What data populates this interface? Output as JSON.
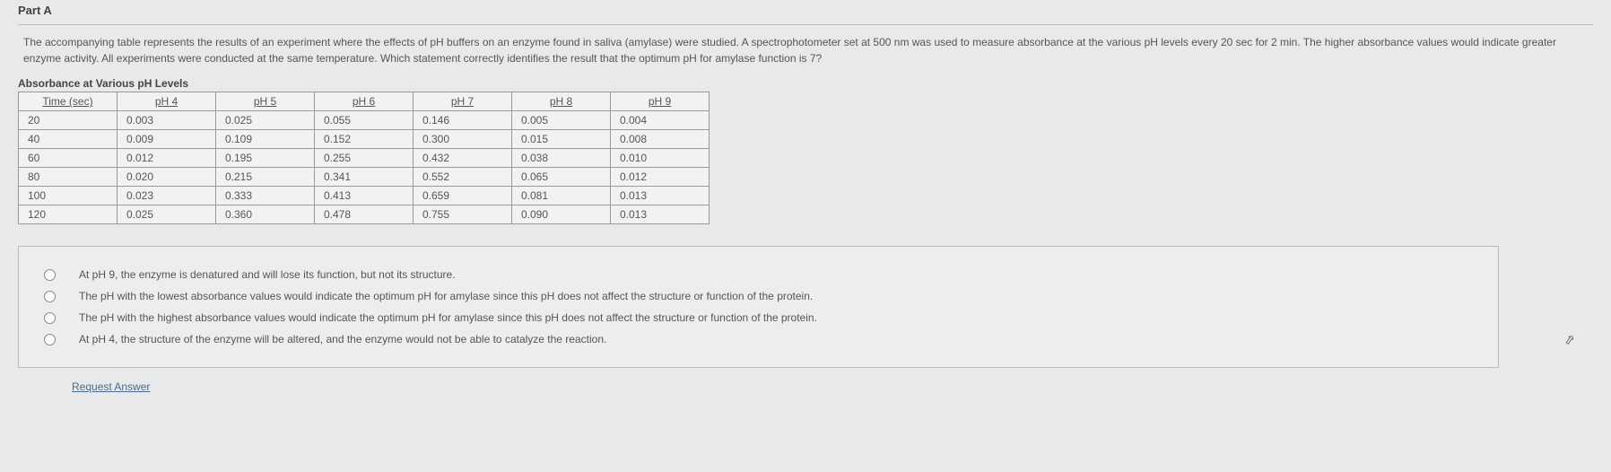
{
  "part_label": "Part A",
  "question": "The accompanying table represents the results of an experiment where the effects of pH buffers on an enzyme found in saliva (amylase) were studied. A spectrophotometer set at 500 nm was used to measure absorbance at the various pH levels every 20 sec for 2 min. The higher absorbance values would indicate greater enzyme activity. All experiments were conducted at the same temperature. Which statement correctly identifies the result that the optimum pH for amylase function is 7?",
  "table": {
    "title": "Absorbance at Various pH Levels",
    "headers": [
      "Time (sec)",
      "pH 4",
      "pH 5",
      "pH 6",
      "pH 7",
      "pH 8",
      "pH 9"
    ],
    "rows": [
      [
        "20",
        "0.003",
        "0.025",
        "0.055",
        "0.146",
        "0.005",
        "0.004"
      ],
      [
        "40",
        "0.009",
        "0.109",
        "0.152",
        "0.300",
        "0.015",
        "0.008"
      ],
      [
        "60",
        "0.012",
        "0.195",
        "0.255",
        "0.432",
        "0.038",
        "0.010"
      ],
      [
        "80",
        "0.020",
        "0.215",
        "0.341",
        "0.552",
        "0.065",
        "0.012"
      ],
      [
        "100",
        "0.023",
        "0.333",
        "0.413",
        "0.659",
        "0.081",
        "0.013"
      ],
      [
        "120",
        "0.025",
        "0.360",
        "0.478",
        "0.755",
        "0.090",
        "0.013"
      ]
    ]
  },
  "options": [
    "At pH 9, the enzyme is denatured and will lose its function, but not its structure.",
    "The pH with the lowest absorbance values would indicate the optimum pH for amylase since this pH does not affect the structure or function of the protein.",
    "The pH with the highest absorbance values would indicate the optimum pH for amylase since this pH does not affect the structure or function of the protein.",
    "At pH 4, the structure of the enzyme will be altered, and the enzyme would not be able to catalyze the reaction."
  ],
  "request_answer_label": "Request Answer"
}
